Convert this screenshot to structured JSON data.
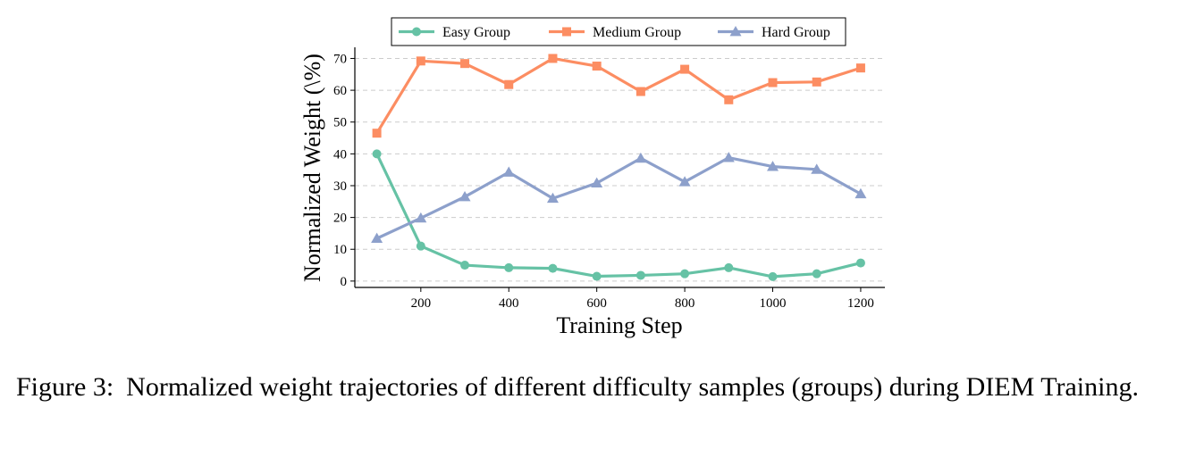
{
  "figure": {
    "label": "Figure 3:",
    "caption": "Normalized weight trajectories of different difficulty samples (groups) during DIEM Training."
  },
  "chart_data": {
    "type": "line",
    "xlabel": "Training Step",
    "ylabel": "Normalized Weight (\\%)",
    "x": [
      100,
      200,
      300,
      400,
      500,
      600,
      700,
      800,
      900,
      1000,
      1100,
      1200
    ],
    "xticks": [
      200,
      400,
      600,
      800,
      1000,
      1200
    ],
    "yticks": [
      0,
      10,
      20,
      30,
      40,
      50,
      60,
      70
    ],
    "xlim": [
      50,
      1255
    ],
    "ylim": [
      -2,
      73.5
    ],
    "grid": "horizontal dashed",
    "legend_position": "top-center",
    "series": [
      {
        "name": "Easy Group",
        "color": "#66c2a5",
        "marker": "circle",
        "values": [
          40,
          11,
          5,
          4.2,
          4,
          1.5,
          1.8,
          2.3,
          4.2,
          1.4,
          2.3,
          5.7
        ]
      },
      {
        "name": "Medium Group",
        "color": "#fc8d62",
        "marker": "square",
        "values": [
          46.5,
          69.2,
          68.4,
          61.8,
          70,
          67.6,
          59.6,
          66.6,
          57,
          62.4,
          62.6,
          67
        ]
      },
      {
        "name": "Hard Group",
        "color": "#8da0cb",
        "marker": "triangle",
        "values": [
          13.4,
          19.8,
          26.5,
          34.2,
          26,
          30.8,
          38.6,
          31.2,
          38.8,
          36,
          35.1,
          27.4
        ]
      }
    ]
  }
}
